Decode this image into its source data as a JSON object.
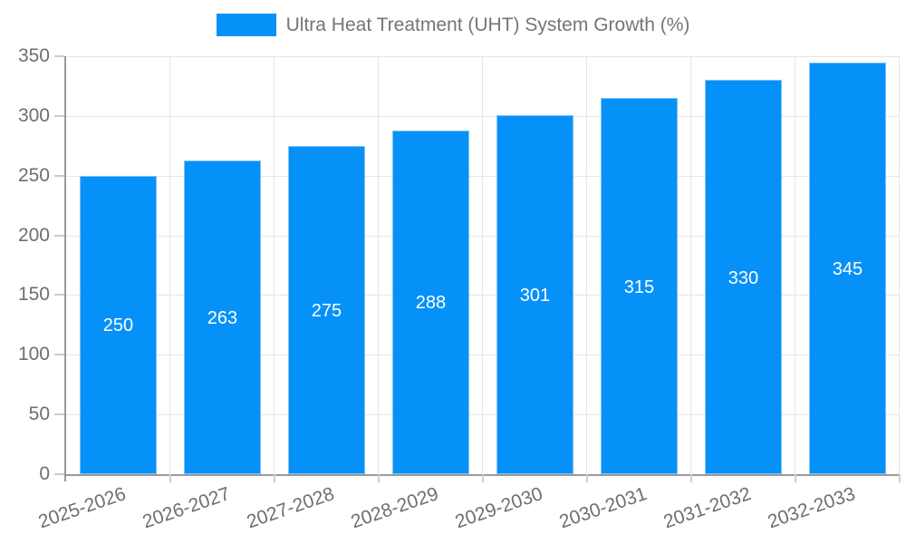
{
  "legend": {
    "label": "Ultra Heat Treatment (UHT) System Growth (%)",
    "position": "top"
  },
  "chart_data": {
    "type": "bar",
    "title": "",
    "series_name": "Ultra Heat Treatment (UHT) System Growth (%)",
    "categories": [
      "2025-2026",
      "2026-2027",
      "2027-2028",
      "2028-2029",
      "2029-2030",
      "2030-2031",
      "2031-2032",
      "2032-2033"
    ],
    "values": [
      250,
      263,
      275,
      288,
      301,
      315,
      330,
      345
    ],
    "xlabel": "",
    "ylabel": "",
    "ylim": [
      0,
      350
    ],
    "yticks": [
      0,
      50,
      100,
      150,
      200,
      250,
      300,
      350
    ],
    "grid": true,
    "legend_position": "top",
    "bar_value_labels": "inside-center"
  },
  "colors": {
    "bar": "#0691f8",
    "bar_border": "#7fc3f7",
    "axis_line": "#999999",
    "grid_line": "#e6e6e6",
    "tick_mark": "#cccccc",
    "tick_label": "#6f6f6f",
    "bar_value_label": "#ffffff",
    "legend_text": "#757575",
    "background": "#ffffff"
  }
}
